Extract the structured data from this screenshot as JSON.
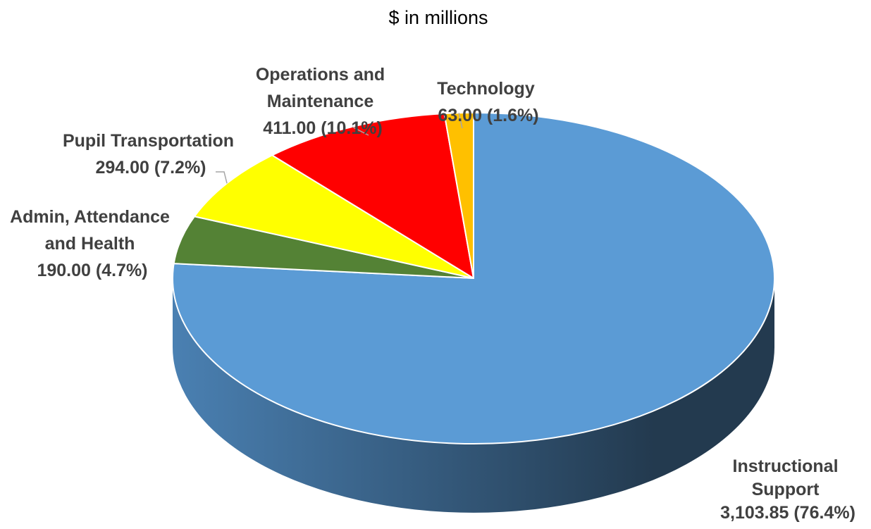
{
  "chart_data": {
    "type": "pie",
    "title": "$ in millions",
    "three_d": true,
    "start_angle_deg": 0,
    "direction": "clockwise",
    "slices": [
      {
        "name": "Instructional Support",
        "value": 3103.85,
        "value_label": "3,103.85",
        "percent_label": "76.4%",
        "color": "#5b9bd5",
        "side_color_light": "#4a80b2",
        "side_color_dark": "#233a4f"
      },
      {
        "name": "Admin, Attendance and Health",
        "value": 190.0,
        "value_label": "190.00",
        "percent_label": "4.7%",
        "color": "#548235"
      },
      {
        "name": "Pupil Transportation",
        "value": 294.0,
        "value_label": "294.00",
        "percent_label": "7.2%",
        "color": "#ffff00"
      },
      {
        "name": "Operations and Maintenance",
        "value": 411.0,
        "value_label": "411.00",
        "percent_label": "10.1%",
        "color": "#ff0000"
      },
      {
        "name": "Technology",
        "value": 63.0,
        "value_label": "63.00",
        "percent_label": "1.6%",
        "color": "#ffc000"
      }
    ],
    "labels": [
      {
        "lines": [
          "Instructional",
          "Support",
          "3,103.85 (76.4%)"
        ]
      },
      {
        "lines": [
          "Admin, Attendance",
          "and Health",
          "190.00 (4.7%)"
        ]
      },
      {
        "lines": [
          "Pupil Transportation",
          "294.00 (7.2%)"
        ]
      },
      {
        "lines": [
          "Operations and",
          "Maintenance",
          "411.00 (10.1%)"
        ]
      },
      {
        "lines": [
          "Technology",
          "63.00 (1.6%)"
        ]
      }
    ]
  }
}
